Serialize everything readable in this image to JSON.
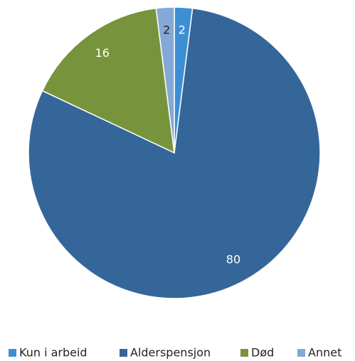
{
  "chart_data": {
    "type": "pie",
    "categories": [
      "Kun i arbeid",
      "Alderspensjon",
      "Død",
      "Annet"
    ],
    "values": [
      2,
      80,
      16,
      2
    ],
    "colors": [
      "#3d8fd4",
      "#356699",
      "#77943d",
      "#85a9d6"
    ],
    "legend": "bottom"
  }
}
